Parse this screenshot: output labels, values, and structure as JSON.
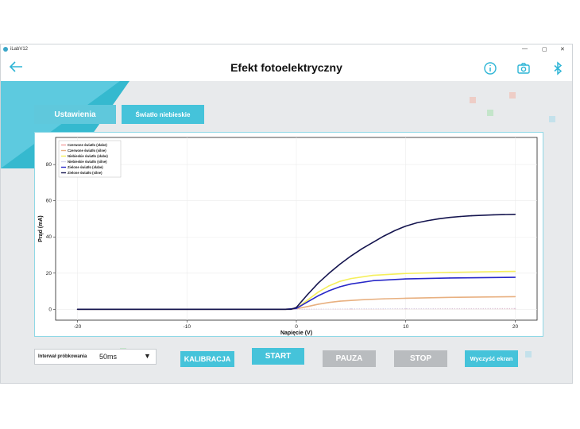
{
  "window": {
    "title": "iLabV12",
    "controls": [
      "—",
      "▢",
      "✕"
    ]
  },
  "header": {
    "title": "Efekt fotoelektryczny",
    "back_icon": "arrow-left-icon",
    "icons": [
      "info-icon",
      "camera-icon",
      "bluetooth-icon"
    ],
    "accent": "#2eb5d6"
  },
  "tabs": {
    "settings": "Ustawienia",
    "light": "Światło niebieskie"
  },
  "chart_data": {
    "type": "line",
    "xlabel": "Napięcie (V)",
    "ylabel": "Prąd (mA)",
    "xlim": [
      -22,
      22
    ],
    "ylim": [
      -6,
      95
    ],
    "xticks": [
      -20,
      -10,
      0,
      10,
      20
    ],
    "yticks": [
      0,
      20,
      40,
      60,
      80
    ],
    "grid": true,
    "legend_position": "top-left",
    "series": [
      {
        "name": "Czerwone światło (słabe)",
        "color": "#f2a0a0",
        "marker": "x",
        "points": [
          [
            -20,
            0
          ],
          [
            0,
            0
          ],
          [
            5,
            0.2
          ],
          [
            10,
            0.3
          ],
          [
            20,
            0.3
          ]
        ]
      },
      {
        "name": "Czerwone światło (silne)",
        "color": "#e8b080",
        "marker": "line",
        "points": [
          [
            -20,
            0
          ],
          [
            -1,
            0
          ],
          [
            0,
            0.3
          ],
          [
            1,
            1.5
          ],
          [
            2,
            2.8
          ],
          [
            3,
            3.8
          ],
          [
            4,
            4.5
          ],
          [
            6,
            5.3
          ],
          [
            8,
            5.8
          ],
          [
            10,
            6.1
          ],
          [
            14,
            6.6
          ],
          [
            20,
            7
          ]
        ]
      },
      {
        "name": "Niebieskie światło (słabe)",
        "color": "#f5ef5a",
        "marker": "line",
        "points": [
          [
            -20,
            0
          ],
          [
            -1,
            0
          ],
          [
            0,
            0.5
          ],
          [
            1,
            5
          ],
          [
            2,
            9.5
          ],
          [
            3,
            13
          ],
          [
            4,
            15.5
          ],
          [
            5,
            17
          ],
          [
            7,
            18.8
          ],
          [
            10,
            19.8
          ],
          [
            14,
            20.4
          ],
          [
            20,
            21
          ]
        ]
      },
      {
        "name": "Niebieskie światło (silne)",
        "color": "#d8d8ee",
        "marker": "x",
        "points": [
          [
            -20,
            0
          ],
          [
            0,
            0
          ],
          [
            5,
            0.3
          ],
          [
            10,
            0.4
          ],
          [
            20,
            0.5
          ]
        ]
      },
      {
        "name": "Zielone światło (słabe)",
        "color": "#2828c8",
        "marker": "line",
        "points": [
          [
            -20,
            0
          ],
          [
            -1,
            0
          ],
          [
            0,
            0.5
          ],
          [
            1,
            4
          ],
          [
            2,
            7.5
          ],
          [
            3,
            10.3
          ],
          [
            4,
            12.5
          ],
          [
            5,
            14
          ],
          [
            7,
            15.8
          ],
          [
            10,
            16.8
          ],
          [
            14,
            17.3
          ],
          [
            20,
            17.7
          ]
        ]
      },
      {
        "name": "Zielone światło (silne)",
        "color": "#15154f",
        "marker": "line",
        "points": [
          [
            -20,
            0
          ],
          [
            -0.5,
            0
          ],
          [
            0,
            1
          ],
          [
            1,
            8
          ],
          [
            2,
            14.5
          ],
          [
            3,
            20
          ],
          [
            4,
            25
          ],
          [
            5,
            29.5
          ],
          [
            6,
            33.5
          ],
          [
            7,
            37
          ],
          [
            8,
            40.5
          ],
          [
            9,
            43.5
          ],
          [
            10,
            46
          ],
          [
            11,
            47.8
          ],
          [
            12,
            49
          ],
          [
            13,
            50
          ],
          [
            14,
            50.8
          ],
          [
            15,
            51.3
          ],
          [
            16,
            51.7
          ],
          [
            18,
            52.2
          ],
          [
            20,
            52.5
          ]
        ]
      }
    ]
  },
  "controls": {
    "interval_label": "Interwał próbkowania",
    "interval_value": "50ms",
    "dropdown_icon": "▼",
    "calibrate": "KALIBRACJA",
    "start": "START",
    "pause": "PAUZA",
    "stop": "STOP",
    "clear": "Wyczyść ekran"
  }
}
